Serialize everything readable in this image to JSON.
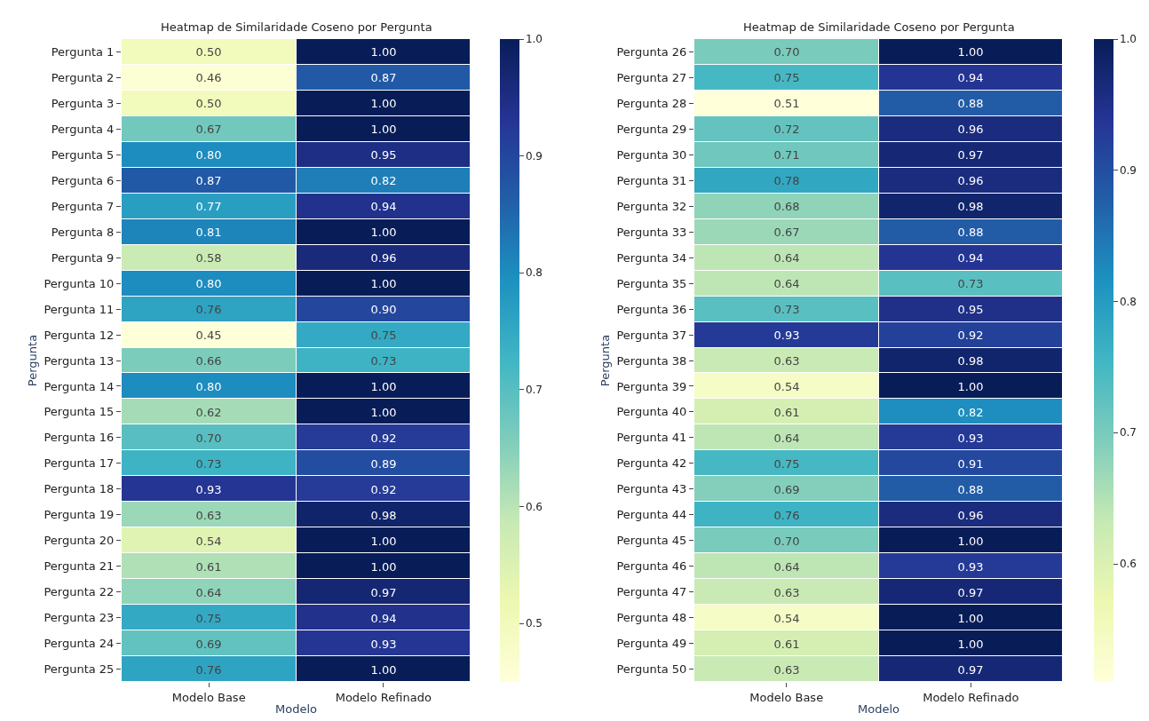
{
  "chart_data": [
    {
      "type": "heatmap",
      "title": "Heatmap de Similaridade Coseno por Pergunta",
      "xlabel": "Modelo",
      "ylabel": "Pergunta",
      "categories": [
        "Modelo Base",
        "Modelo Refinado"
      ],
      "y_categories": [
        "Pergunta 1",
        "Pergunta 2",
        "Pergunta 3",
        "Pergunta 4",
        "Pergunta 5",
        "Pergunta 6",
        "Pergunta 7",
        "Pergunta 8",
        "Pergunta 9",
        "Pergunta 10",
        "Pergunta 11",
        "Pergunta 12",
        "Pergunta 13",
        "Pergunta 14",
        "Pergunta 15",
        "Pergunta 16",
        "Pergunta 17",
        "Pergunta 18",
        "Pergunta 19",
        "Pergunta 20",
        "Pergunta 21",
        "Pergunta 22",
        "Pergunta 23",
        "Pergunta 24",
        "Pergunta 25"
      ],
      "cells": [
        [
          0.5,
          1.0
        ],
        [
          0.46,
          0.87
        ],
        [
          0.5,
          1.0
        ],
        [
          0.67,
          1.0
        ],
        [
          0.8,
          0.95
        ],
        [
          0.87,
          0.82
        ],
        [
          0.77,
          0.94
        ],
        [
          0.81,
          1.0
        ],
        [
          0.58,
          0.96
        ],
        [
          0.8,
          1.0
        ],
        [
          0.76,
          0.9
        ],
        [
          0.45,
          0.75
        ],
        [
          0.66,
          0.73
        ],
        [
          0.8,
          1.0
        ],
        [
          0.62,
          1.0
        ],
        [
          0.7,
          0.92
        ],
        [
          0.73,
          0.89
        ],
        [
          0.93,
          0.92
        ],
        [
          0.63,
          0.98
        ],
        [
          0.54,
          1.0
        ],
        [
          0.61,
          1.0
        ],
        [
          0.64,
          0.97
        ],
        [
          0.75,
          0.94
        ],
        [
          0.69,
          0.93
        ],
        [
          0.76,
          1.0
        ]
      ],
      "cell_labels": [
        [
          "0.50",
          "1.00"
        ],
        [
          "0.46",
          "0.87"
        ],
        [
          "0.50",
          "1.00"
        ],
        [
          "0.67",
          "1.00"
        ],
        [
          "0.80",
          "0.95"
        ],
        [
          "0.87",
          "0.82"
        ],
        [
          "0.77",
          "0.94"
        ],
        [
          "0.81",
          "1.00"
        ],
        [
          "0.58",
          "0.96"
        ],
        [
          "0.80",
          "1.00"
        ],
        [
          "0.76",
          "0.90"
        ],
        [
          "0.45",
          "0.75"
        ],
        [
          "0.66",
          "0.73"
        ],
        [
          "0.80",
          "1.00"
        ],
        [
          "0.62",
          "1.00"
        ],
        [
          "0.70",
          "0.92"
        ],
        [
          "0.73",
          "0.89"
        ],
        [
          "0.93",
          "0.92"
        ],
        [
          "0.63",
          "0.98"
        ],
        [
          "0.54",
          "1.00"
        ],
        [
          "0.61",
          "1.00"
        ],
        [
          "0.64",
          "0.97"
        ],
        [
          "0.75",
          "0.94"
        ],
        [
          "0.69",
          "0.93"
        ],
        [
          "0.76",
          "1.00"
        ]
      ],
      "data_labels": true,
      "clim": [
        0.45,
        1.0
      ],
      "cticks": [
        0.5,
        0.6,
        0.7,
        0.8,
        0.9,
        {
          "value": 1,
          "label": "1.0"
        }
      ]
    },
    {
      "type": "heatmap",
      "title": "Heatmap de Similaridade Coseno por Pergunta",
      "xlabel": "Modelo",
      "ylabel": "Pergunta",
      "categories": [
        "Modelo Base",
        "Modelo Refinado"
      ],
      "y_categories": [
        "Pergunta 26",
        "Pergunta 27",
        "Pergunta 28",
        "Pergunta 29",
        "Pergunta 30",
        "Pergunta 31",
        "Pergunta 32",
        "Pergunta 33",
        "Pergunta 34",
        "Pergunta 35",
        "Pergunta 36",
        "Pergunta 37",
        "Pergunta 38",
        "Pergunta 39",
        "Pergunta 40",
        "Pergunta 41",
        "Pergunta 42",
        "Pergunta 43",
        "Pergunta 44",
        "Pergunta 45",
        "Pergunta 46",
        "Pergunta 47",
        "Pergunta 48",
        "Pergunta 49",
        "Pergunta 50"
      ],
      "cells": [
        [
          0.7,
          1.0
        ],
        [
          0.75,
          0.94
        ],
        [
          0.51,
          0.88
        ],
        [
          0.72,
          0.96
        ],
        [
          0.71,
          0.97
        ],
        [
          0.78,
          0.96
        ],
        [
          0.68,
          0.98
        ],
        [
          0.67,
          0.88
        ],
        [
          0.64,
          0.94
        ],
        [
          0.64,
          0.73
        ],
        [
          0.73,
          0.95
        ],
        [
          0.93,
          0.92
        ],
        [
          0.63,
          0.98
        ],
        [
          0.54,
          1.0
        ],
        [
          0.61,
          0.82
        ],
        [
          0.64,
          0.93
        ],
        [
          0.75,
          0.91
        ],
        [
          0.69,
          0.88
        ],
        [
          0.76,
          0.96
        ],
        [
          0.7,
          1.0
        ],
        [
          0.64,
          0.93
        ],
        [
          0.63,
          0.97
        ],
        [
          0.54,
          1.0
        ],
        [
          0.61,
          1.0
        ],
        [
          0.63,
          0.97
        ]
      ],
      "cell_labels": [
        [
          "0.70",
          "1.00"
        ],
        [
          "0.75",
          "0.94"
        ],
        [
          "0.51",
          "0.88"
        ],
        [
          "0.72",
          "0.96"
        ],
        [
          "0.71",
          "0.97"
        ],
        [
          "0.78",
          "0.96"
        ],
        [
          "0.68",
          "0.98"
        ],
        [
          "0.67",
          "0.88"
        ],
        [
          "0.64",
          "0.94"
        ],
        [
          "0.64",
          "0.73"
        ],
        [
          "0.73",
          "0.95"
        ],
        [
          "0.93",
          "0.92"
        ],
        [
          "0.63",
          "0.98"
        ],
        [
          "0.54",
          "1.00"
        ],
        [
          "0.61",
          "0.82"
        ],
        [
          "0.64",
          "0.93"
        ],
        [
          "0.75",
          "0.91"
        ],
        [
          "0.69",
          "0.88"
        ],
        [
          "0.76",
          "0.96"
        ],
        [
          "0.70",
          "1.00"
        ],
        [
          "0.64",
          "0.93"
        ],
        [
          "0.63",
          "0.97"
        ],
        [
          "0.54",
          "1.00"
        ],
        [
          "0.61",
          "1.00"
        ],
        [
          "0.63",
          "0.97"
        ]
      ],
      "data_labels": true,
      "clim": [
        0.51,
        1.0
      ],
      "cticks": [
        0.6,
        0.7,
        0.8,
        0.9,
        {
          "value": 1,
          "label": "1.0"
        }
      ]
    }
  ]
}
